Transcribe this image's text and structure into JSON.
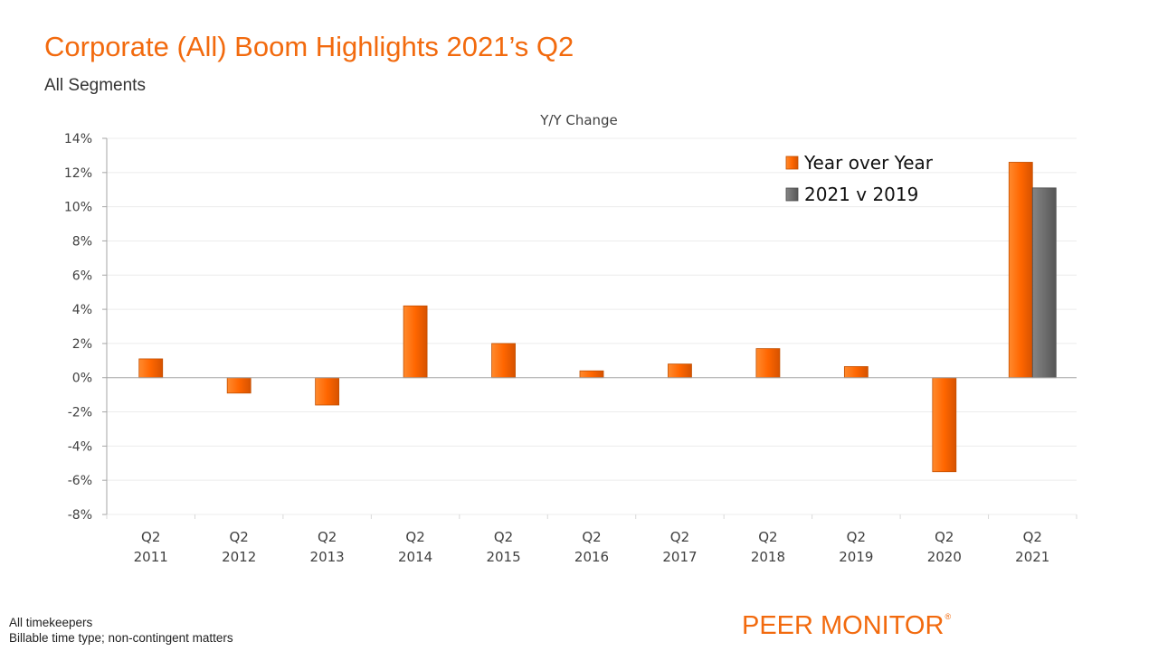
{
  "title": "Corporate (All) Boom Highlights 2021’s Q2",
  "subtitle": "All Segments",
  "footnotes": [
    "All timekeepers",
    "Billable time type; non-contingent matters"
  ],
  "brand": {
    "name": "PEER MONITOR",
    "mark": "®"
  },
  "colors": {
    "accent": "#f26a0e",
    "series1": "#ff6600",
    "series2": "#707070"
  },
  "chart_data": {
    "type": "bar",
    "title": "Y/Y Change",
    "xlabel": "",
    "ylabel": "",
    "ylim": [
      -0.08,
      0.14
    ],
    "yticks": [
      0.14,
      0.12,
      0.1,
      0.08,
      0.06,
      0.04,
      0.02,
      0.0,
      -0.02,
      -0.04,
      -0.06,
      -0.08
    ],
    "ytick_labels": [
      "14%",
      "12%",
      "10%",
      "8%",
      "6%",
      "4%",
      "2%",
      "0%",
      "-2%",
      "-4%",
      "-6%",
      "-8%"
    ],
    "grid": true,
    "legend_position": "top-right",
    "categories": [
      [
        "Q2",
        "2011"
      ],
      [
        "Q2",
        "2012"
      ],
      [
        "Q2",
        "2013"
      ],
      [
        "Q2",
        "2014"
      ],
      [
        "Q2",
        "2015"
      ],
      [
        "Q2",
        "2016"
      ],
      [
        "Q2",
        "2017"
      ],
      [
        "Q2",
        "2018"
      ],
      [
        "Q2",
        "2019"
      ],
      [
        "Q2",
        "2020"
      ],
      [
        "Q2",
        "2021"
      ]
    ],
    "series": [
      {
        "name": "Year over Year",
        "color": "#ff6600",
        "values": [
          0.011,
          -0.009,
          -0.016,
          0.042,
          0.02,
          0.004,
          0.008,
          0.017,
          0.0065,
          -0.055,
          0.126
        ]
      },
      {
        "name": "2021 v 2019",
        "color": "#707070",
        "values": [
          null,
          null,
          null,
          null,
          null,
          null,
          null,
          null,
          null,
          null,
          0.111
        ]
      }
    ]
  }
}
